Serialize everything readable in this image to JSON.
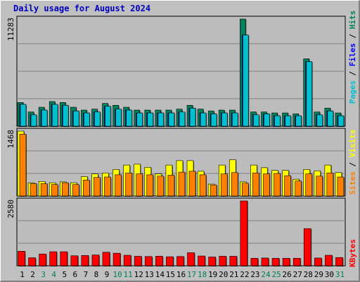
{
  "title": "Daily usage for August 2024",
  "colors": {
    "background": "#c0c0c0",
    "plot_background": "#bcbcbc",
    "hits": "#00805c",
    "files": "#0000ff",
    "pages": "#00c0d0",
    "visits": "#ffff00",
    "sites": "#ff8000",
    "kbytes": "#ff0000",
    "weekday_label": "#000000",
    "weekend_label": "#00805c",
    "title": "#0000c0"
  },
  "chart_data": [
    {
      "type": "bar",
      "panel": "hits-files-pages",
      "categories": [
        "1",
        "2",
        "3",
        "4",
        "5",
        "6",
        "7",
        "8",
        "9",
        "10",
        "11",
        "12",
        "13",
        "14",
        "15",
        "16",
        "17",
        "18",
        "19",
        "20",
        "21",
        "22",
        "23",
        "24",
        "25",
        "26",
        "27",
        "28",
        "29",
        "30",
        "31"
      ],
      "ylim": [
        0,
        11283
      ],
      "ytick_label": "11283",
      "series": [
        {
          "name": "Hits",
          "color": "#00805c",
          "values": [
            2500,
            1500,
            2000,
            2600,
            2500,
            2000,
            1700,
            1800,
            2400,
            2200,
            2000,
            1700,
            1700,
            1700,
            1700,
            1800,
            2200,
            1800,
            1600,
            1700,
            1700,
            11283,
            1500,
            1500,
            1400,
            1400,
            1300,
            7100,
            1500,
            1900,
            1400
          ]
        },
        {
          "name": "Files",
          "color": "#0000ff",
          "values": [
            2300,
            1200,
            1700,
            2300,
            2200,
            1600,
            1400,
            1500,
            2100,
            1800,
            1700,
            1400,
            1400,
            1400,
            1400,
            1500,
            1900,
            1400,
            1300,
            1400,
            1400,
            9600,
            1200,
            1300,
            1100,
            1100,
            1100,
            6800,
            1200,
            1600,
            1100
          ]
        },
        {
          "name": "Pages",
          "color": "#00c0d0",
          "values": [
            2300,
            1200,
            1700,
            2300,
            2200,
            1600,
            1400,
            1500,
            2100,
            1800,
            1700,
            1400,
            1400,
            1400,
            1400,
            1500,
            1900,
            1400,
            1300,
            1400,
            1400,
            9600,
            1200,
            1300,
            1100,
            1100,
            1100,
            6800,
            1200,
            1600,
            1100
          ]
        }
      ]
    },
    {
      "type": "bar",
      "panel": "visits-sites",
      "categories": [
        "1",
        "2",
        "3",
        "4",
        "5",
        "6",
        "7",
        "8",
        "9",
        "10",
        "11",
        "12",
        "13",
        "14",
        "15",
        "16",
        "17",
        "18",
        "19",
        "20",
        "21",
        "22",
        "23",
        "24",
        "25",
        "26",
        "27",
        "28",
        "29",
        "30",
        "31"
      ],
      "ylim": [
        0,
        1468
      ],
      "ytick_label": "1468",
      "series": [
        {
          "name": "Visits",
          "color": "#ffff00",
          "values": [
            1468,
            300,
            330,
            300,
            320,
            300,
            440,
            500,
            520,
            600,
            700,
            720,
            650,
            500,
            700,
            800,
            800,
            560,
            270,
            700,
            820,
            320,
            700,
            640,
            580,
            580,
            380,
            600,
            570,
            700,
            530
          ]
        },
        {
          "name": "Sites",
          "color": "#ff8000",
          "values": [
            1400,
            280,
            280,
            260,
            300,
            260,
            360,
            420,
            430,
            480,
            520,
            500,
            480,
            450,
            470,
            540,
            560,
            480,
            250,
            500,
            530,
            290,
            520,
            500,
            510,
            460,
            340,
            500,
            450,
            520,
            430
          ]
        }
      ]
    },
    {
      "type": "bar",
      "panel": "kbytes",
      "categories": [
        "1",
        "2",
        "3",
        "4",
        "5",
        "6",
        "7",
        "8",
        "9",
        "10",
        "11",
        "12",
        "13",
        "14",
        "15",
        "16",
        "17",
        "18",
        "19",
        "20",
        "21",
        "22",
        "23",
        "24",
        "25",
        "26",
        "27",
        "28",
        "29",
        "30",
        "31"
      ],
      "ylim": [
        0,
        2580
      ],
      "ytick_label": "2580",
      "series": [
        {
          "name": "KBytes",
          "color": "#ff0000",
          "values": [
            580,
            320,
            470,
            560,
            560,
            400,
            410,
            430,
            540,
            500,
            420,
            380,
            370,
            380,
            360,
            370,
            520,
            390,
            350,
            380,
            380,
            2580,
            300,
            310,
            300,
            300,
            300,
            1480,
            310,
            420,
            330
          ]
        }
      ]
    }
  ],
  "x_labels": {
    "values": [
      "1",
      "2",
      "3",
      "4",
      "5",
      "6",
      "7",
      "8",
      "9",
      "10",
      "11",
      "12",
      "13",
      "14",
      "15",
      "16",
      "17",
      "18",
      "19",
      "20",
      "21",
      "22",
      "23",
      "24",
      "25",
      "26",
      "27",
      "28",
      "29",
      "30",
      "31"
    ],
    "weekend": [
      "3",
      "4",
      "10",
      "11",
      "17",
      "18",
      "24",
      "25",
      "31"
    ]
  },
  "legends": {
    "top": [
      {
        "text": "Pages",
        "color": "#00c0d0"
      },
      {
        "text": " / ",
        "color": "#000000"
      },
      {
        "text": "Files",
        "color": "#0000ff"
      },
      {
        "text": " / ",
        "color": "#000000"
      },
      {
        "text": "Hits",
        "color": "#00805c"
      }
    ],
    "middle": [
      {
        "text": "Sites",
        "color": "#ff8000"
      },
      {
        "text": " / ",
        "color": "#000000"
      },
      {
        "text": "Visits",
        "color": "#ffff00"
      }
    ],
    "bottom": [
      {
        "text": "KBytes",
        "color": "#ff0000"
      }
    ]
  }
}
